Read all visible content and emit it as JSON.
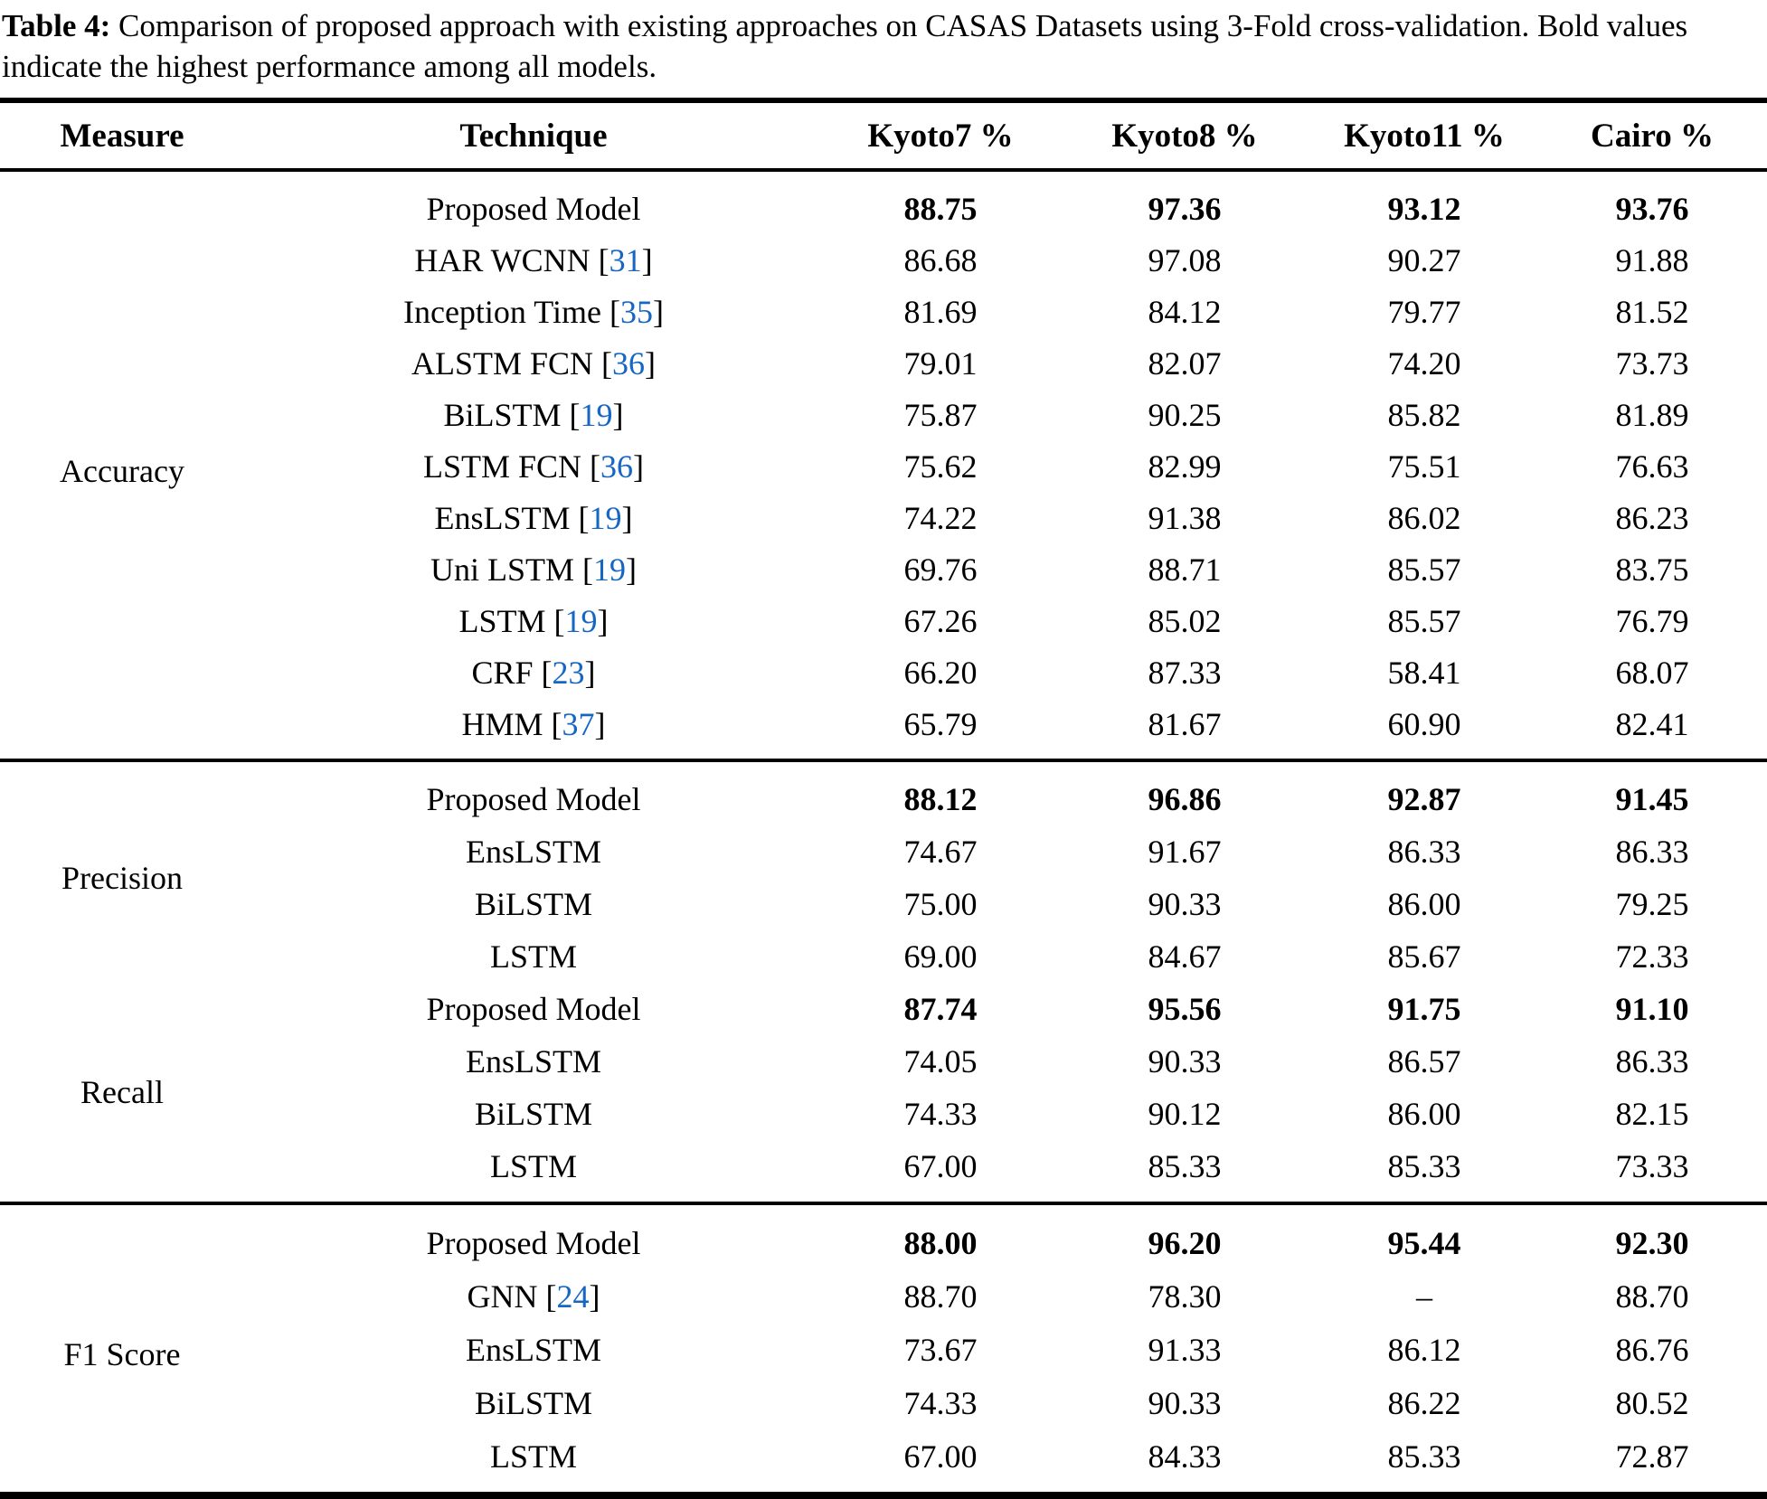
{
  "caption": {
    "label": "Table 4:",
    "text": " Comparison of proposed approach with existing approaches on CASAS Datasets using 3-Fold cross-validation. Bold values indicate the highest performance among all models."
  },
  "link_color": "#1666c4",
  "table": {
    "headers": [
      "Measure",
      "Technique",
      "Kyoto7 %",
      "Kyoto8 %",
      "Kyoto11 %",
      "Cairo %"
    ],
    "ref_brackets": [
      "[",
      "]"
    ],
    "sections": [
      {
        "measure": "Accuracy",
        "separator_above": false,
        "rows": [
          {
            "technique": "Proposed Model",
            "ref": null,
            "bold": true,
            "values": [
              "88.75",
              "97.36",
              "93.12",
              "93.76"
            ]
          },
          {
            "technique": "HAR WCNN",
            "ref": "31",
            "bold": false,
            "values": [
              "86.68",
              "97.08",
              "90.27",
              "91.88"
            ]
          },
          {
            "technique": "Inception Time",
            "ref": "35",
            "bold": false,
            "values": [
              "81.69",
              "84.12",
              "79.77",
              "81.52"
            ]
          },
          {
            "technique": "ALSTM FCN",
            "ref": "36",
            "bold": false,
            "values": [
              "79.01",
              "82.07",
              "74.20",
              "73.73"
            ]
          },
          {
            "technique": "BiLSTM",
            "ref": "19",
            "bold": false,
            "values": [
              "75.87",
              "90.25",
              "85.82",
              "81.89"
            ]
          },
          {
            "technique": "LSTM FCN",
            "ref": "36",
            "bold": false,
            "values": [
              "75.62",
              "82.99",
              "75.51",
              "76.63"
            ]
          },
          {
            "technique": "EnsLSTM",
            "ref": "19",
            "bold": false,
            "values": [
              "74.22",
              "91.38",
              "86.02",
              "86.23"
            ]
          },
          {
            "technique": "Uni LSTM",
            "ref": "19",
            "bold": false,
            "values": [
              "69.76",
              "88.71",
              "85.57",
              "83.75"
            ]
          },
          {
            "technique": "LSTM",
            "ref": "19",
            "bold": false,
            "values": [
              "67.26",
              "85.02",
              "85.57",
              "76.79"
            ]
          },
          {
            "technique": "CRF",
            "ref": "23",
            "bold": false,
            "values": [
              "66.20",
              "87.33",
              "58.41",
              "68.07"
            ]
          },
          {
            "technique": "HMM",
            "ref": "37",
            "bold": false,
            "values": [
              "65.79",
              "81.67",
              "60.90",
              "82.41"
            ]
          }
        ]
      },
      {
        "measure": "Precision",
        "separator_above": true,
        "rows": [
          {
            "technique": "Proposed Model",
            "ref": null,
            "bold": true,
            "values": [
              "88.12",
              "96.86",
              "92.87",
              "91.45"
            ]
          },
          {
            "technique": "EnsLSTM",
            "ref": null,
            "bold": false,
            "values": [
              "74.67",
              "91.67",
              "86.33",
              "86.33"
            ]
          },
          {
            "technique": "BiLSTM",
            "ref": null,
            "bold": false,
            "values": [
              "75.00",
              "90.33",
              "86.00",
              "79.25"
            ]
          },
          {
            "technique": "LSTM",
            "ref": null,
            "bold": false,
            "values": [
              "69.00",
              "84.67",
              "85.67",
              "72.33"
            ]
          }
        ]
      },
      {
        "measure": "Recall",
        "separator_above": false,
        "rows": [
          {
            "technique": "Proposed Model",
            "ref": null,
            "bold": true,
            "values": [
              "87.74",
              "95.56",
              "91.75",
              "91.10"
            ]
          },
          {
            "technique": "EnsLSTM",
            "ref": null,
            "bold": false,
            "values": [
              "74.05",
              "90.33",
              "86.57",
              "86.33"
            ]
          },
          {
            "technique": "BiLSTM",
            "ref": null,
            "bold": false,
            "values": [
              "74.33",
              "90.12",
              "86.00",
              "82.15"
            ]
          },
          {
            "technique": "LSTM",
            "ref": null,
            "bold": false,
            "values": [
              "67.00",
              "85.33",
              "85.33",
              "73.33"
            ]
          }
        ]
      },
      {
        "measure": "F1 Score",
        "separator_above": true,
        "rows": [
          {
            "technique": "Proposed Model",
            "ref": null,
            "bold": true,
            "values": [
              "88.00",
              "96.20",
              "95.44",
              "92.30"
            ]
          },
          {
            "technique": "GNN",
            "ref": "24",
            "bold": false,
            "values": [
              "88.70",
              "78.30",
              "–",
              "88.70"
            ]
          },
          {
            "technique": "EnsLSTM",
            "ref": null,
            "bold": false,
            "values": [
              "73.67",
              "91.33",
              "86.12",
              "86.76"
            ]
          },
          {
            "technique": "BiLSTM",
            "ref": null,
            "bold": false,
            "values": [
              "74.33",
              "90.33",
              "86.22",
              "80.52"
            ]
          },
          {
            "technique": "LSTM",
            "ref": null,
            "bold": false,
            "values": [
              "67.00",
              "84.33",
              "85.33",
              "72.87"
            ]
          }
        ]
      }
    ]
  }
}
